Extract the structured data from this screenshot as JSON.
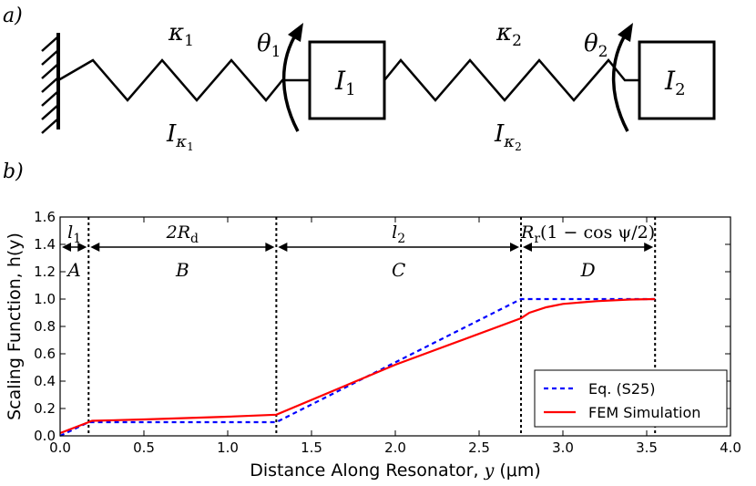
{
  "panel_labels": {
    "a": "a)",
    "b": "b)"
  },
  "schematic": {
    "kappa1": {
      "base": "κ",
      "sub": "1"
    },
    "kappa2": {
      "base": "κ",
      "sub": "2"
    },
    "theta1": {
      "base": "θ",
      "sub": "1"
    },
    "theta2": {
      "base": "θ",
      "sub": "2"
    },
    "mass1": {
      "base": "I",
      "sub": "1"
    },
    "mass2": {
      "base": "I",
      "sub": "2"
    },
    "i_kappa1": {
      "base": "I",
      "sub": "κ",
      "subsub": "1"
    },
    "i_kappa2": {
      "base": "I",
      "sub": "κ",
      "subsub": "2"
    }
  },
  "chart_data": {
    "type": "line",
    "xlabel_text": "Distance Along Resonator,",
    "xlabel_var": "y",
    "xlabel_unit": "(μm)",
    "ylabel": "Scaling Function, h(y)",
    "xlim": [
      0.0,
      4.0
    ],
    "ylim": [
      0.0,
      1.6
    ],
    "xticks": [
      0.0,
      0.5,
      1.0,
      1.5,
      2.0,
      2.5,
      3.0,
      3.5,
      4.0
    ],
    "yticks": [
      0.0,
      0.2,
      0.4,
      0.6,
      0.8,
      1.0,
      1.2,
      1.4,
      1.6
    ],
    "grid": false,
    "legend_position": "bottom-right",
    "vlines": [
      0.17,
      1.29,
      2.75,
      3.55
    ],
    "regions": [
      {
        "letter": "A",
        "span_top": "l",
        "span_top_sub": "1",
        "x0": 0.0,
        "x1": 0.17
      },
      {
        "letter": "B",
        "span_top": "2R",
        "span_top_sub": "d",
        "x0": 0.17,
        "x1": 1.29
      },
      {
        "letter": "C",
        "span_top": "l",
        "span_top_sub": "2",
        "x0": 1.29,
        "x1": 2.75
      },
      {
        "letter": "D",
        "span_top": "R",
        "span_top_sub": "r",
        "span_top_extra": "(1 − cos ψ/2)",
        "x0": 2.75,
        "x1": 3.55
      }
    ],
    "series": [
      {
        "name": "Eq. (S25)",
        "color": "#0000ff",
        "style": "dashed",
        "x": [
          0.0,
          0.17,
          1.29,
          2.75,
          3.55
        ],
        "y": [
          0.0,
          0.1,
          0.1,
          1.0,
          1.0
        ]
      },
      {
        "name": "FEM Simulation",
        "color": "#ff0000",
        "style": "solid",
        "x": [
          0.0,
          0.17,
          0.19,
          0.5,
          1.0,
          1.29,
          2.0,
          2.75,
          2.8,
          2.9,
          3.0,
          3.2,
          3.4,
          3.55
        ],
        "y": [
          0.02,
          0.1,
          0.11,
          0.12,
          0.14,
          0.155,
          0.52,
          0.86,
          0.9,
          0.94,
          0.965,
          0.985,
          0.997,
          1.0
        ]
      }
    ]
  }
}
